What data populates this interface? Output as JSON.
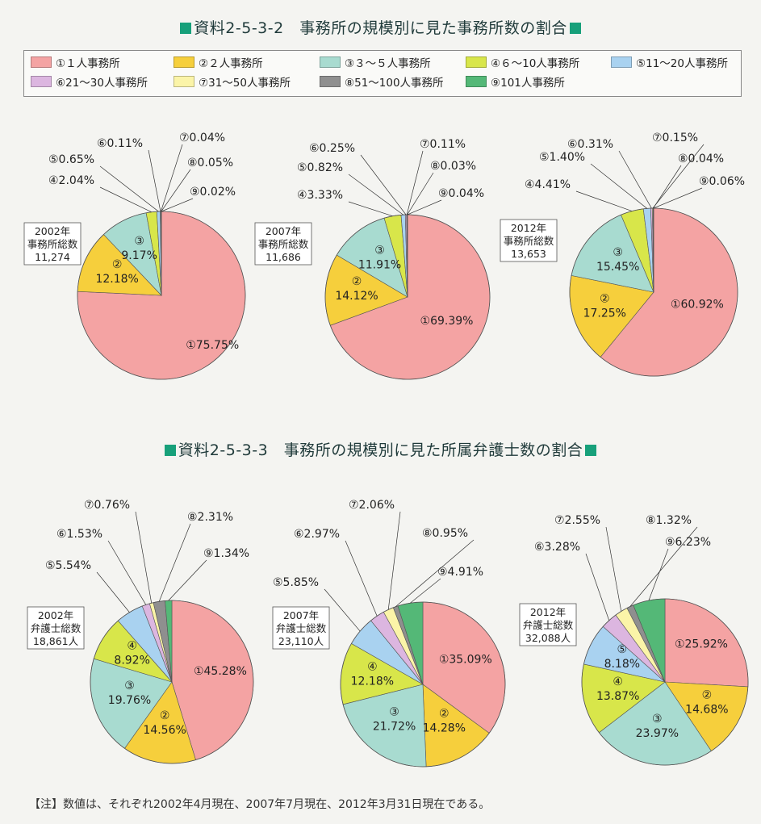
{
  "titles": {
    "chart1": "資料2-5-3-2　事務所の規模別に見た事務所数の割合",
    "chart2": "資料2-5-3-3　事務所の規模別に見た所属弁護士数の割合"
  },
  "legend": [
    {
      "label": "①１人事務所",
      "color": "#f4a3a3"
    },
    {
      "label": "②２人事務所",
      "color": "#f6cf3c"
    },
    {
      "label": "③３～５人事務所",
      "color": "#a8dbd0"
    },
    {
      "label": "④６～10人事務所",
      "color": "#d8e64a"
    },
    {
      "label": "⑤11～20人事務所",
      "color": "#a9d2f0"
    },
    {
      "label": "⑥21～30人事務所",
      "color": "#dcb6e0"
    },
    {
      "label": "⑦31～50人事務所",
      "color": "#fbf4a8"
    },
    {
      "label": "⑧51～100人事務所",
      "color": "#8f8f8f"
    },
    {
      "label": "⑨101人事務所",
      "color": "#54b877"
    }
  ],
  "note": "【注】数値は、それぞれ2002年4月現在、2007年7月現在、2012年3月31日現在である。",
  "chart_data": [
    {
      "type": "pie",
      "title": "資料2-5-3-2　事務所の規模別に見た事務所数の割合",
      "caption": [
        "2002年",
        "事務所総数",
        "11,274"
      ],
      "slices": [
        75.75,
        12.18,
        9.17,
        2.04,
        0.65,
        0.11,
        0.04,
        0.05,
        0.02
      ],
      "labels": [
        "①75.75%",
        "②\n12.18%",
        "③\n9.17%",
        "④2.04%",
        "⑤0.65%",
        "⑥0.11%",
        "⑦0.04%",
        "⑧0.05%",
        "⑨0.02%"
      ]
    },
    {
      "type": "pie",
      "title": "資料2-5-3-2　事務所の規模別に見た事務所数の割合",
      "caption": [
        "2007年",
        "事務所総数",
        "11,686"
      ],
      "slices": [
        69.39,
        14.12,
        11.91,
        3.33,
        0.82,
        0.25,
        0.11,
        0.03,
        0.04
      ],
      "labels": [
        "①69.39%",
        "②\n14.12%",
        "③\n11.91%",
        "④3.33%",
        "⑤0.82%",
        "⑥0.25%",
        "⑦0.11%",
        "⑧0.03%",
        "⑨0.04%"
      ]
    },
    {
      "type": "pie",
      "title": "資料2-5-3-2　事務所の規模別に見た事務所数の割合",
      "caption": [
        "2012年",
        "事務所総数",
        "13,653"
      ],
      "slices": [
        60.92,
        17.25,
        15.45,
        4.41,
        1.4,
        0.31,
        0.15,
        0.04,
        0.06
      ],
      "labels": [
        "①60.92%",
        "②\n17.25%",
        "③\n15.45%",
        "④4.41%",
        "⑤1.40%",
        "⑥0.31%",
        "⑦0.15%",
        "⑧0.04%",
        "⑨0.06%"
      ]
    },
    {
      "type": "pie",
      "title": "資料2-5-3-3　事務所の規模別に見た所属弁護士数の割合",
      "caption": [
        "2002年",
        "弁護士総数",
        "18,861人"
      ],
      "slices": [
        45.28,
        14.56,
        19.76,
        8.92,
        5.54,
        1.53,
        0.76,
        2.31,
        1.34
      ],
      "labels": [
        "①45.28%",
        "②\n14.56%",
        "③\n19.76%",
        "④\n8.92%",
        "⑤5.54%",
        "⑥1.53%",
        "⑦0.76%",
        "⑧2.31%",
        "⑨1.34%"
      ]
    },
    {
      "type": "pie",
      "title": "資料2-5-3-3　事務所の規模別に見た所属弁護士数の割合",
      "caption": [
        "2007年",
        "弁護士総数",
        "23,110人"
      ],
      "slices": [
        35.09,
        14.28,
        21.72,
        12.18,
        5.85,
        2.97,
        2.06,
        0.95,
        4.91
      ],
      "labels": [
        "①35.09%",
        "②\n14.28%",
        "③\n21.72%",
        "④\n12.18%",
        "⑤5.85%",
        "⑥2.97%",
        "⑦2.06%",
        "⑧0.95%",
        "⑨4.91%"
      ]
    },
    {
      "type": "pie",
      "title": "資料2-5-3-3　事務所の規模別に見た所属弁護士数の割合",
      "caption": [
        "2012年",
        "弁護士総数",
        "32,088人"
      ],
      "slices": [
        25.92,
        14.68,
        23.97,
        13.87,
        8.18,
        3.28,
        2.55,
        1.32,
        6.23
      ],
      "labels": [
        "①25.92%",
        "②\n14.68%",
        "③\n23.97%",
        "④\n13.87%",
        "⑤\n8.18%",
        "⑥3.28%",
        "⑦2.55%",
        "⑧1.32%",
        "⑨6.23%"
      ]
    }
  ]
}
